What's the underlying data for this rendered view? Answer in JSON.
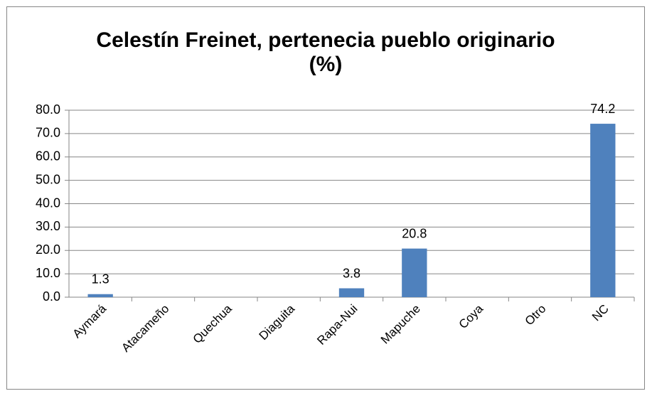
{
  "chart_data": {
    "type": "bar",
    "title": "Celestín Freinet, pertenecia pueblo originario (%)",
    "categories": [
      "Aymará",
      "Atacameño",
      "Quechua",
      "Diaguita",
      "Rapa-Nui",
      "Mapuche",
      "Coya",
      "Otro",
      "NC"
    ],
    "values": [
      1.3,
      0,
      0,
      0,
      3.8,
      20.8,
      0,
      0,
      74.2
    ],
    "value_labels": [
      "1.3",
      null,
      null,
      null,
      "3.8",
      "20.8",
      null,
      null,
      "74.2"
    ],
    "color": "#4f81bd",
    "ylim": [
      0,
      80
    ],
    "yticks": [
      {
        "value": 0,
        "label": "0.0"
      },
      {
        "value": 10,
        "label": "10.0"
      },
      {
        "value": 20,
        "label": "20.0"
      },
      {
        "value": 30,
        "label": "30.0"
      },
      {
        "value": 40,
        "label": "40.0"
      },
      {
        "value": 50,
        "label": "50.0"
      },
      {
        "value": 60,
        "label": "60.0"
      },
      {
        "value": 70,
        "label": "70.0"
      },
      {
        "value": 80,
        "label": "80.0"
      }
    ],
    "grid": true
  }
}
